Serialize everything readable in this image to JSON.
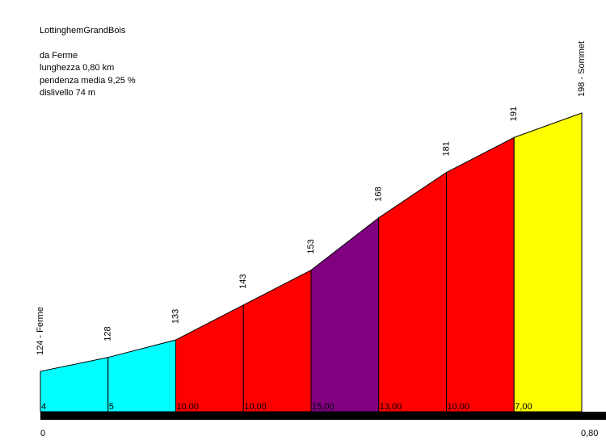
{
  "info": {
    "title": "LottinghemGrandBois",
    "from": "da Ferme",
    "length": "lunghezza 0,80 km",
    "avg_grade": "pendenza media 9,25 %",
    "elevation_gain": "dislivello 74 m"
  },
  "chart_data": {
    "type": "area",
    "title": "LottinghemGrandBois",
    "x_start_label": "0",
    "x_end_label": "0,80",
    "x": [
      0,
      0.1,
      0.2,
      0.3,
      0.4,
      0.5,
      0.6,
      0.7,
      0.8
    ],
    "elevations": [
      124,
      128,
      133,
      143,
      153,
      168,
      181,
      191,
      198
    ],
    "elevation_labels": [
      "124 - Ferme",
      "128",
      "133",
      "143",
      "153",
      "168",
      "181",
      "191",
      "198 - Sommet"
    ],
    "segments": [
      {
        "grade": "4",
        "color": "#00FFFF"
      },
      {
        "grade": "5",
        "color": "#00FFFF"
      },
      {
        "grade": "10,00",
        "color": "#FF0000"
      },
      {
        "grade": "10,00",
        "color": "#FF0000"
      },
      {
        "grade": "15,00",
        "color": "#800080"
      },
      {
        "grade": "13,00",
        "color": "#FF0000"
      },
      {
        "grade": "10,00",
        "color": "#FF0000"
      },
      {
        "grade": "7,00",
        "color": "#FFFF00"
      }
    ]
  }
}
